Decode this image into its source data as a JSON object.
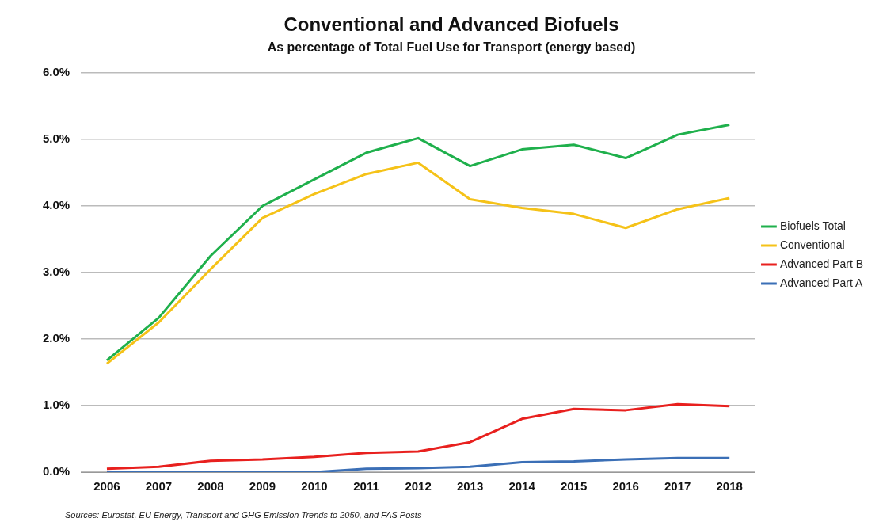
{
  "chart_data": {
    "type": "line",
    "title": "Conventional and Advanced Biofuels",
    "subtitle": "As percentage of Total Fuel Use for Transport (energy based)",
    "categories": [
      "2006",
      "2007",
      "2008",
      "2009",
      "2010",
      "2011",
      "2012",
      "2013",
      "2014",
      "2015",
      "2016",
      "2017",
      "2018"
    ],
    "series": [
      {
        "name": "Biofuels Total",
        "color": "#1fb04c",
        "values": [
          1.68,
          2.32,
          3.25,
          4.0,
          4.4,
          4.8,
          5.02,
          4.6,
          4.85,
          4.92,
          4.72,
          5.07,
          5.22
        ]
      },
      {
        "name": "Conventional",
        "color": "#f5c218",
        "values": [
          1.63,
          2.25,
          3.05,
          3.82,
          4.18,
          4.48,
          4.65,
          4.1,
          3.97,
          3.88,
          3.67,
          3.95,
          4.12
        ]
      },
      {
        "name": "Advanced Part B",
        "color": "#e8201e",
        "values": [
          0.05,
          0.08,
          0.17,
          0.19,
          0.23,
          0.29,
          0.31,
          0.45,
          0.8,
          0.95,
          0.93,
          1.02,
          0.99
        ]
      },
      {
        "name": "Advanced Part A",
        "color": "#3b6fb6",
        "values": [
          0.0,
          0.0,
          0.0,
          0.0,
          0.0,
          0.05,
          0.06,
          0.08,
          0.15,
          0.16,
          0.19,
          0.21,
          0.21
        ]
      }
    ],
    "ylim": [
      0,
      6
    ],
    "yticks": [
      {
        "value": 0,
        "label": "0.0%"
      },
      {
        "value": 1,
        "label": "1.0%"
      },
      {
        "value": 2,
        "label": "2.0%"
      },
      {
        "value": 3,
        "label": "3.0%"
      },
      {
        "value": 4,
        "label": "4.0%"
      },
      {
        "value": 5,
        "label": "5.0%"
      },
      {
        "value": 6,
        "label": "6.0%"
      }
    ],
    "grid": "y",
    "legend": "right",
    "marker": "none",
    "line_style": "solid",
    "annotations": [
      "Sources: Eurostat, EU Energy, Transport and GHG Emission Trends to 2050, and FAS Posts"
    ]
  }
}
